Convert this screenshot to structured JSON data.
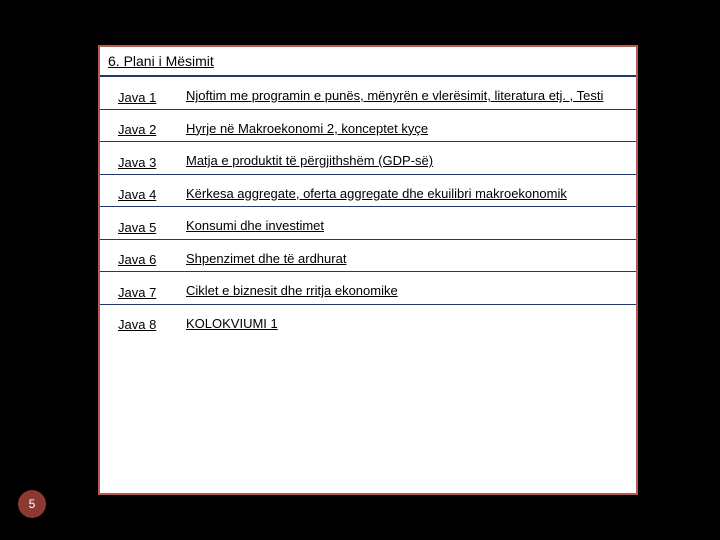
{
  "colors": {
    "page_bg": "#000000",
    "box_bg": "#ffffff",
    "box_border": "#b85a50",
    "row_border": "#1f3a6d",
    "text": "#000000",
    "badge_bg": "#8b3a32",
    "badge_text": "#ffffff"
  },
  "header": "6. Plani i Mësimit",
  "rows": [
    {
      "week": "Java 1",
      "desc": "Njoftim me programin e punës, mënyrën e vlerësimit, literatura etj. , Testi",
      "justify": true
    },
    {
      "week": "Java 2",
      "desc": "Hyrje në Makroekonomi 2, konceptet kyçe"
    },
    {
      "week": "Java 3",
      "desc": "Matja e produktit të përgjithshëm (GDP-së)"
    },
    {
      "week": "Java 4",
      "desc": "Kërkesa aggregate, oferta aggregate dhe ekuilibri makroekonomik"
    },
    {
      "week": "Java 5",
      "desc": "Konsumi dhe investimet"
    },
    {
      "week": "Java 6",
      "desc": "Shpenzimet dhe të ardhurat"
    },
    {
      "week": "Java 7",
      "desc": "Ciklet e biznesit dhe rritja  ekonomike"
    },
    {
      "week": "Java 8",
      "desc": "KOLOKVIUMI 1"
    }
  ],
  "page_number": "5"
}
